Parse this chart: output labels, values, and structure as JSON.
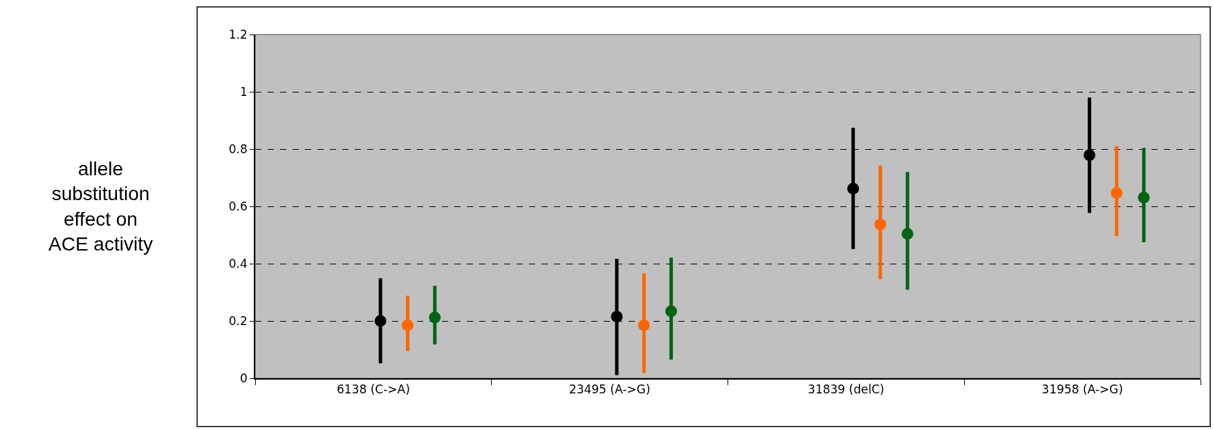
{
  "chart_data": {
    "type": "scatter",
    "ylabel": "allele substitution effect on ACE activity",
    "categories": [
      "6138 (C->A)",
      "23495 (A->G)",
      "31839 (delC)",
      "31958 (A->G)"
    ],
    "series": [
      {
        "color": "#000000",
        "values": [
          0.2,
          0.215,
          0.662,
          0.779
        ],
        "errors": [
          [
            0.052,
            0.349
          ],
          [
            0.011,
            0.417
          ],
          [
            0.451,
            0.874
          ],
          [
            0.577,
            0.98
          ]
        ]
      },
      {
        "color": "#ff6600",
        "values": [
          0.185,
          0.185,
          0.537,
          0.647
        ],
        "errors": [
          [
            0.095,
            0.288
          ],
          [
            0.018,
            0.366
          ],
          [
            0.346,
            0.742
          ],
          [
            0.496,
            0.81
          ]
        ]
      },
      {
        "color": "#006414",
        "values": [
          0.212,
          0.234,
          0.504,
          0.631
        ],
        "errors": [
          [
            0.118,
            0.323
          ],
          [
            0.065,
            0.421
          ],
          [
            0.309,
            0.72
          ],
          [
            0.475,
            0.804
          ]
        ]
      }
    ],
    "ylim": [
      0,
      1.2
    ],
    "yticks": [
      0,
      0.2,
      0.4,
      0.6,
      0.8,
      1,
      1.2
    ],
    "grid": "y",
    "marker": "circle"
  }
}
